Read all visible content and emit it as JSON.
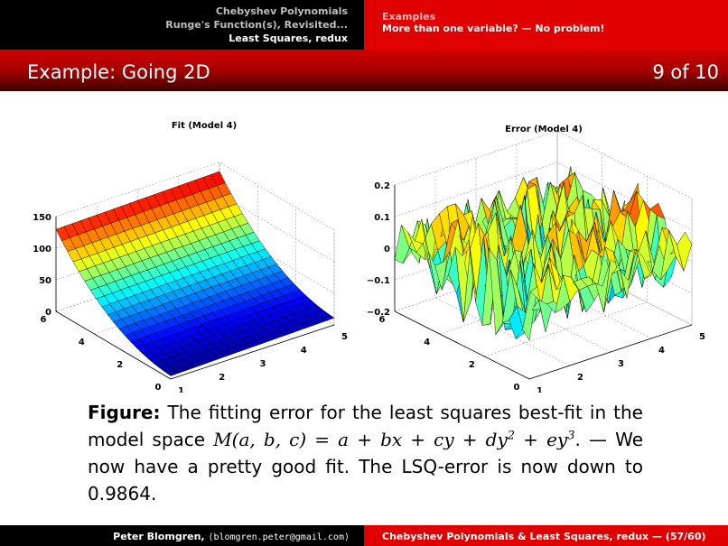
{
  "header": {
    "nav_left": [
      "Chebyshev Polynomials",
      "Runge's Function(s), Revisited...",
      "Least Squares, redux"
    ],
    "section": "Examples",
    "subsection": "More than one variable? — No problem!"
  },
  "frame": {
    "title": "Example: Going 2D",
    "counter": "9 of 10"
  },
  "chart_data": [
    {
      "type": "surface",
      "title": "Fit (Model 4)",
      "x_ticks": [
        "1",
        "2",
        "3",
        "4",
        "5"
      ],
      "y_ticks": [
        "0",
        "2",
        "4",
        "6"
      ],
      "z_ticks": [
        "0",
        "50",
        "100",
        "150"
      ],
      "xlim": [
        1,
        5
      ],
      "ylim": [
        0,
        6
      ],
      "zlim": [
        0,
        150
      ],
      "grid": true,
      "colormap": "jet",
      "nx": 20,
      "ny": 20,
      "model": "M(a,b,c) = a + b·x + c·y + d·y^2 + e·y^3",
      "z_values_by_y": {
        "0": 5,
        "1": 12,
        "2": 25,
        "3": 45,
        "4": 72,
        "5": 98,
        "6": 112
      }
    },
    {
      "type": "surface",
      "title": "Error (Model 4)",
      "x_ticks": [
        "1",
        "2",
        "3",
        "4",
        "5"
      ],
      "y_ticks": [
        "0",
        "2",
        "4",
        "6"
      ],
      "z_ticks": [
        "−0.2",
        "−0.1",
        "0",
        "0.1",
        "0.2"
      ],
      "xlim": [
        1,
        5
      ],
      "ylim": [
        0,
        6
      ],
      "zlim": [
        -0.2,
        0.2
      ],
      "grid": true,
      "colormap": "jet",
      "nx": 20,
      "ny": 20,
      "error_range": [
        -0.2,
        0.15
      ]
    }
  ],
  "caption": {
    "label": "Figure:",
    "text_1": "The fitting error for the least squares best-fit in the model space",
    "math_lhs": "M(a, b, c) = a + bx + cy + dy",
    "sup_1": "2",
    "math_mid": " + ey",
    "sup_2": "3",
    "text_2": ".  — We now have a pretty good fit.  The LSQ-error is now down to 0.9864."
  },
  "footer": {
    "author": "Peter Blomgren,",
    "email": "⟨blomgren.peter@gmail.com⟩",
    "talk": "Chebyshev Polynomials & Least Squares, redux",
    "pages": "— (57/60)"
  }
}
